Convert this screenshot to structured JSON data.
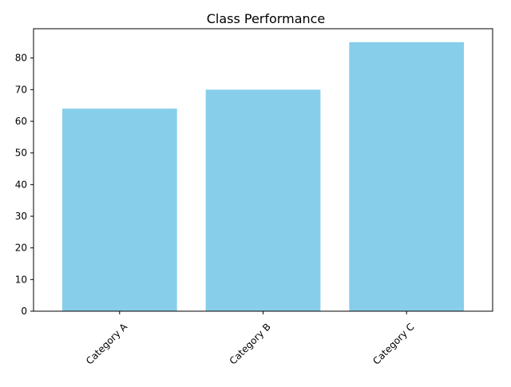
{
  "chart_data": {
    "type": "bar",
    "title": "Class Performance",
    "categories": [
      "Category A",
      "Category B",
      "Category C"
    ],
    "values": [
      64,
      70,
      85
    ],
    "xlabel": "",
    "ylabel": "",
    "ylim": [
      0,
      89.25
    ],
    "yticks": [
      "0",
      "10",
      "20",
      "30",
      "40",
      "50",
      "60",
      "70",
      "80"
    ],
    "bar_color": "#87ceeb",
    "grid": false,
    "x_tick_rotation_deg": 45
  }
}
